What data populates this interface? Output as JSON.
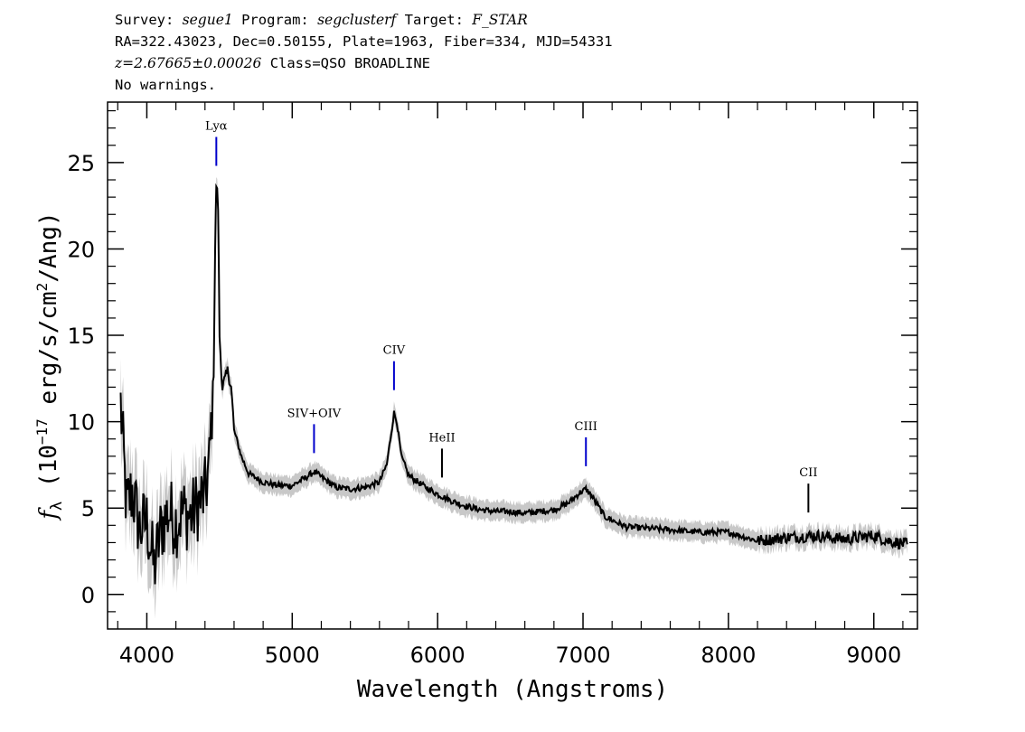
{
  "header": {
    "survey_label": "Survey:",
    "survey": "segue1",
    "program_label": "Program:",
    "program": "segclusterf",
    "target_label": "Target:",
    "target": "F_STAR",
    "coords": "RA=322.43023, Dec=0.50155, Plate=1963, Fiber=334, MJD=54331",
    "redshift": "z=2.67665±0.00026",
    "class": "Class=QSO BROADLINE",
    "warnings": "No warnings."
  },
  "chart_data": {
    "type": "line",
    "xlabel": "Wavelength (Angstroms)",
    "ylabel": "fλ (10⁻¹⁷ erg/s/cm²/Ang)",
    "xlim": [
      3730,
      9300
    ],
    "ylim": [
      -2.0,
      28.5
    ],
    "x_ticks": [
      4000,
      5000,
      6000,
      7000,
      8000,
      9000
    ],
    "y_ticks": [
      0,
      5,
      10,
      15,
      20,
      25
    ],
    "series": [
      {
        "color": "#000000",
        "points": [
          [
            3820,
            11.0
          ],
          [
            3860,
            5.0
          ],
          [
            3900,
            6.0
          ],
          [
            3950,
            3.8
          ],
          [
            4000,
            4.2
          ],
          [
            4050,
            1.5
          ],
          [
            4100,
            3.9
          ],
          [
            4150,
            4.8
          ],
          [
            4200,
            4.2
          ],
          [
            4250,
            4.8
          ],
          [
            4300,
            4.5
          ],
          [
            4350,
            5.2
          ],
          [
            4400,
            5.8
          ],
          [
            4430,
            7.5
          ],
          [
            4460,
            13.0
          ],
          [
            4470,
            20.0
          ],
          [
            4478,
            23.8
          ],
          [
            4490,
            22.5
          ],
          [
            4500,
            15.0
          ],
          [
            4520,
            12.0
          ],
          [
            4545,
            12.5
          ],
          [
            4560,
            13.0
          ],
          [
            4580,
            12.0
          ],
          [
            4600,
            9.5
          ],
          [
            4650,
            8.0
          ],
          [
            4700,
            7.0
          ],
          [
            4800,
            6.5
          ],
          [
            4900,
            6.3
          ],
          [
            5000,
            6.3
          ],
          [
            5100,
            6.8
          ],
          [
            5150,
            7.1
          ],
          [
            5200,
            6.8
          ],
          [
            5300,
            6.2
          ],
          [
            5400,
            6.1
          ],
          [
            5500,
            6.2
          ],
          [
            5600,
            6.5
          ],
          [
            5650,
            7.5
          ],
          [
            5700,
            10.5
          ],
          [
            5720,
            10.0
          ],
          [
            5750,
            8.0
          ],
          [
            5800,
            6.9
          ],
          [
            5900,
            6.3
          ],
          [
            6000,
            5.8
          ],
          [
            6100,
            5.4
          ],
          [
            6200,
            5.1
          ],
          [
            6300,
            4.9
          ],
          [
            6400,
            4.8
          ],
          [
            6500,
            4.8
          ],
          [
            6600,
            4.7
          ],
          [
            6700,
            4.8
          ],
          [
            6800,
            4.9
          ],
          [
            6900,
            5.3
          ],
          [
            6980,
            5.9
          ],
          [
            7020,
            6.1
          ],
          [
            7060,
            5.7
          ],
          [
            7150,
            4.5
          ],
          [
            7300,
            3.9
          ],
          [
            7500,
            3.8
          ],
          [
            7800,
            3.6
          ],
          [
            8000,
            3.6
          ],
          [
            8200,
            3.1
          ],
          [
            8400,
            3.3
          ],
          [
            8600,
            3.4
          ],
          [
            8800,
            3.2
          ],
          [
            9000,
            3.4
          ],
          [
            9100,
            3.1
          ],
          [
            9230,
            2.9
          ]
        ]
      }
    ],
    "lines": [
      {
        "label": "Lyα",
        "x": 4478,
        "color": "#0000cc"
      },
      {
        "label": "SIV+OIV",
        "x": 5150,
        "color": "#0000cc"
      },
      {
        "label": "CIV",
        "x": 5700,
        "color": "#0000cc"
      },
      {
        "label": "HeII",
        "x": 6030,
        "color": "#000000"
      },
      {
        "label": "CIII",
        "x": 7020,
        "color": "#0000cc"
      },
      {
        "label": "CII",
        "x": 8550,
        "color": "#000000"
      }
    ]
  }
}
